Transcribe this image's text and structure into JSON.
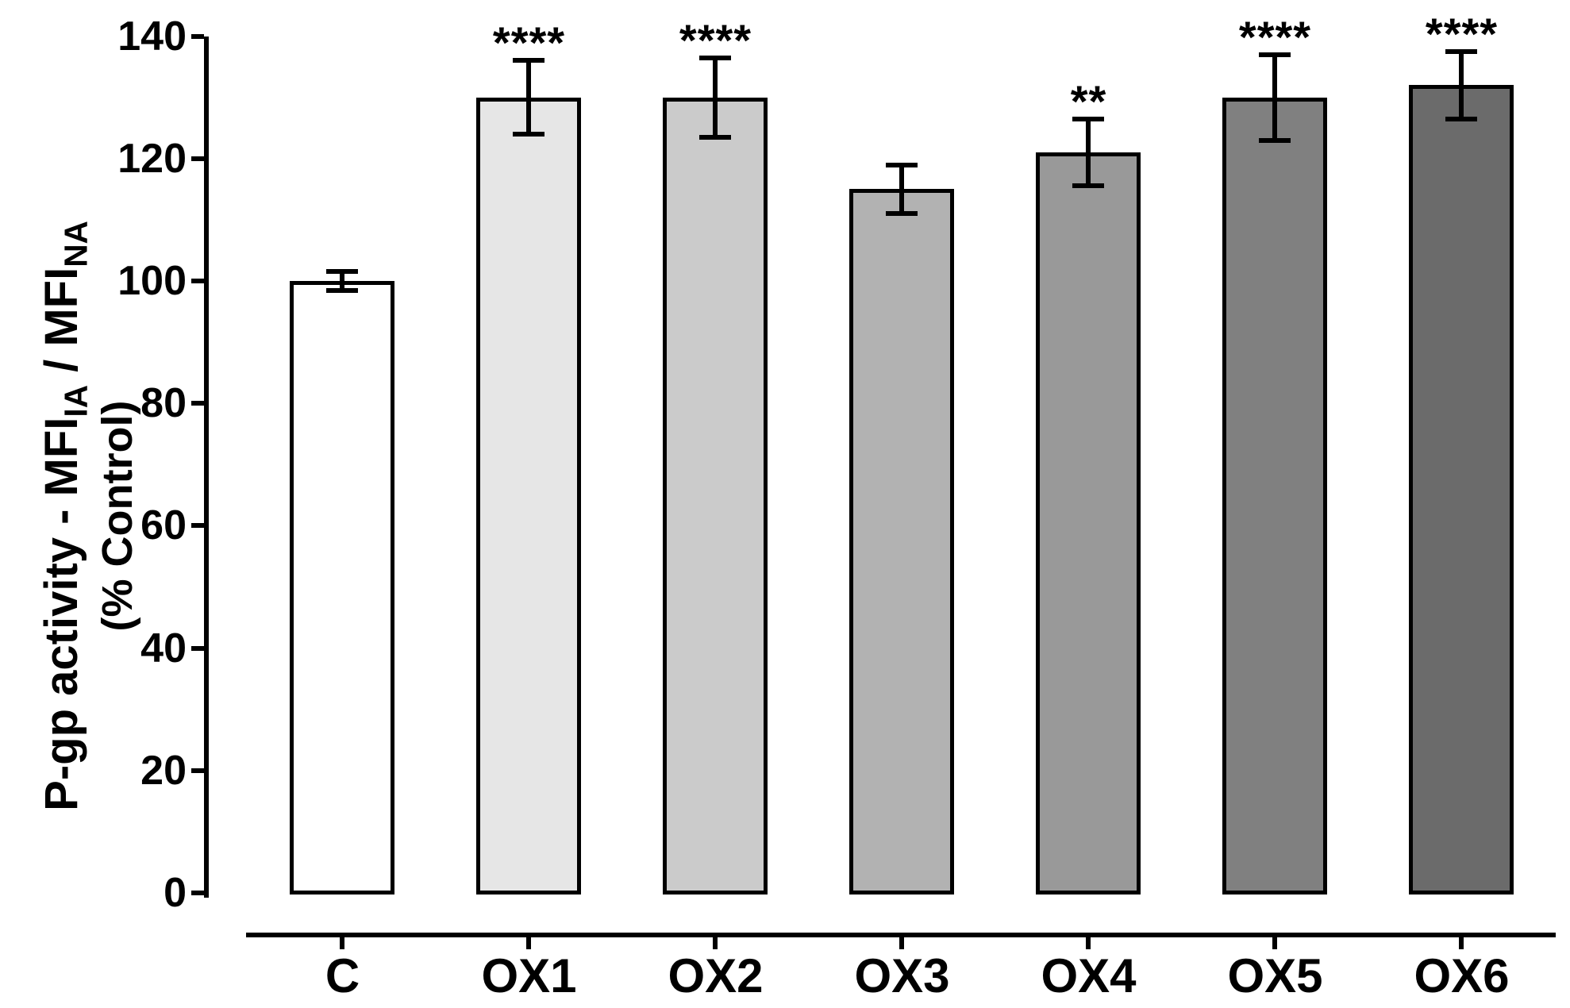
{
  "figure": {
    "background": "#ffffff",
    "axis_color": "#000000",
    "text_color": "#000000"
  },
  "chart_data": {
    "type": "bar",
    "title": "",
    "categories": [
      "C",
      "OX1",
      "OX2",
      "OX3",
      "OX4",
      "OX5",
      "OX6"
    ],
    "values": [
      100,
      130,
      130,
      115,
      121,
      130,
      132
    ],
    "errors": [
      1.5,
      6,
      6.5,
      4,
      5.5,
      7,
      5.5
    ],
    "significance": [
      "",
      "****",
      "****",
      "",
      "**",
      "****",
      "****"
    ],
    "bar_colors": [
      "#ffffff",
      "#e6e6e6",
      "#cbcbcb",
      "#b2b2b2",
      "#999999",
      "#808080",
      "#6b6b6b"
    ],
    "bar_border_color": "#000000",
    "error_bar_color": "#000000",
    "error_bar_style": "symmetric-with-caps",
    "ylabel": {
      "prefix": "P-gp activity - MFI",
      "sub1": "IA",
      "mid": " / MFI",
      "sub2": "NA",
      "line2": "(% Control)"
    },
    "xlabel": "",
    "yticks": [
      0,
      20,
      40,
      60,
      80,
      100,
      120,
      140
    ],
    "ylim": [
      0,
      140
    ],
    "grid": false,
    "legend": null
  }
}
